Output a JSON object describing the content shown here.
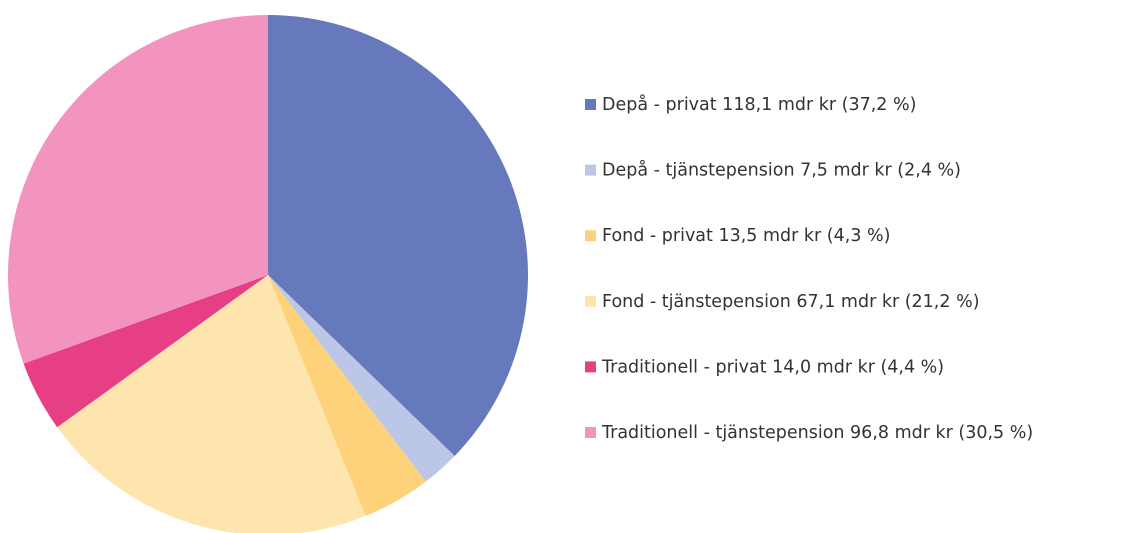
{
  "chart_data": {
    "type": "pie",
    "categories": [
      "Depå - privat 118,1 mdr kr (37,2 %)",
      "Depå - tjänstepension 7,5 mdr kr (2,4 %)",
      "Fond - privat 13,5 mdr kr (4,3 %)",
      "Fond - tjänstepension 67,1 mdr kr (21,2 %)",
      "Traditionell - privat 14,0 mdr kr (4,4 %)",
      "Traditionell - tjänstepension 96,8 mdr kr (30,5 %)"
    ],
    "values": [
      118.1,
      7.5,
      13.5,
      67.1,
      14.0,
      96.8
    ],
    "colors": [
      "#6779bd",
      "#bcc6e6",
      "#fdd27a",
      "#fee5ad",
      "#e63f86",
      "#f394be"
    ],
    "legend": "right"
  }
}
